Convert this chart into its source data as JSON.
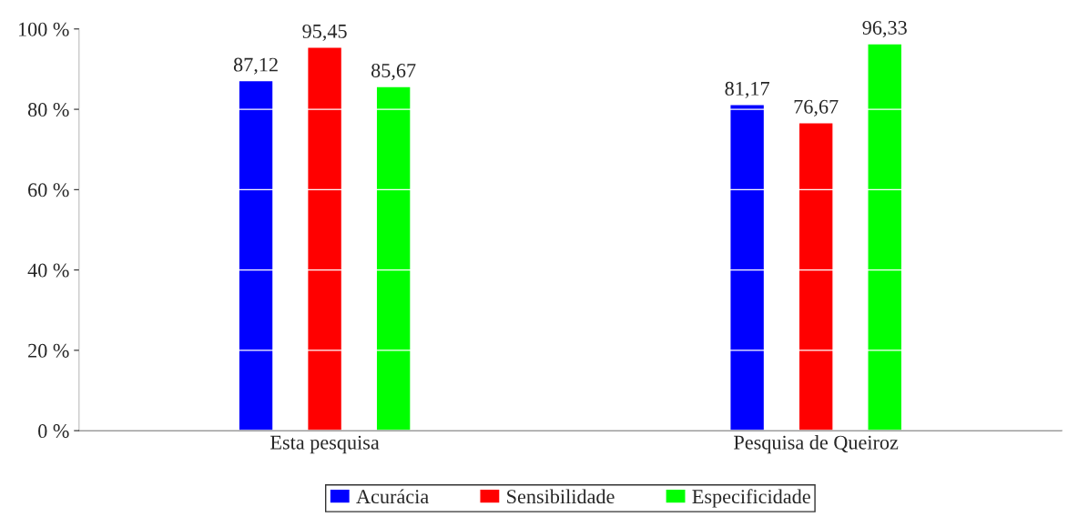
{
  "chart_data": {
    "type": "bar",
    "categories": [
      "Esta pesquisa",
      "Pesquisa de Queiroz"
    ],
    "series": [
      {
        "name": "Acurácia",
        "color": "#0000ff",
        "values": [
          87.12,
          81.17
        ],
        "value_labels": [
          "87,12",
          "81,17"
        ]
      },
      {
        "name": "Sensibilidade",
        "color": "#ff0000",
        "values": [
          95.45,
          76.67
        ],
        "value_labels": [
          "95,45",
          "76,67"
        ]
      },
      {
        "name": "Especificidade",
        "color": "#00ff00",
        "values": [
          85.67,
          96.33
        ],
        "value_labels": [
          "85,67",
          "96,33"
        ]
      }
    ],
    "ylim": [
      0,
      100
    ],
    "yticks": [
      {
        "value": 0,
        "label": "0 %"
      },
      {
        "value": 20,
        "label": "20 %"
      },
      {
        "value": 40,
        "label": "40 %"
      },
      {
        "value": 60,
        "label": "60 %"
      },
      {
        "value": 80,
        "label": "80 %"
      },
      {
        "value": 100,
        "label": "100 %"
      }
    ],
    "grid": "y",
    "legend": "bottom"
  }
}
